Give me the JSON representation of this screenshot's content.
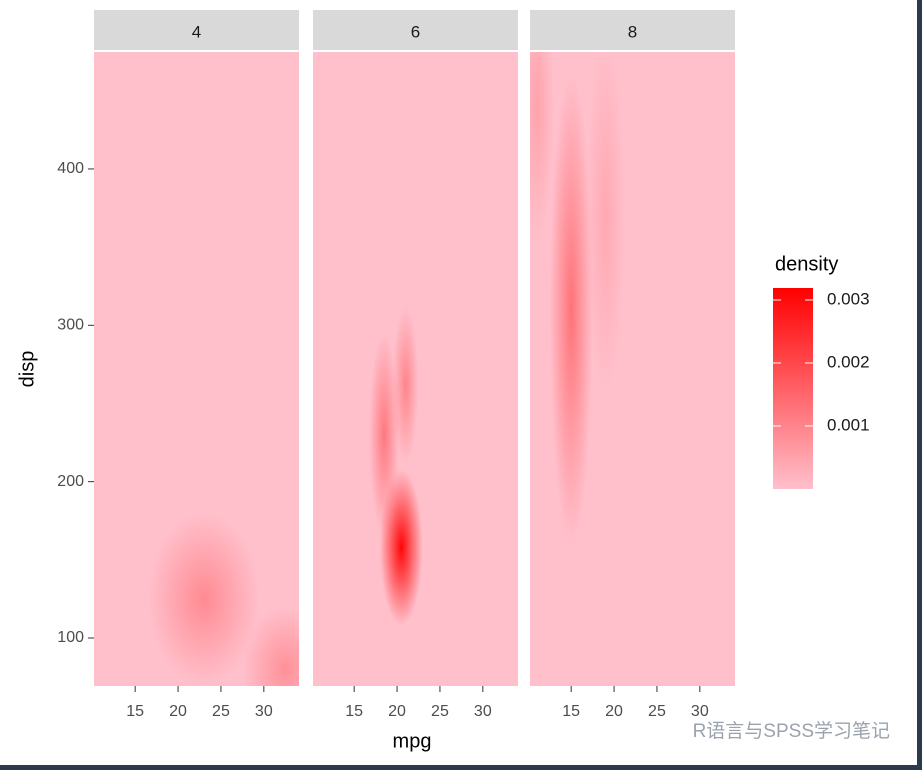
{
  "chart_data": {
    "type": "density2d",
    "x_label": "mpg",
    "y_label": "disp",
    "xlim": [
      10.2,
      34.1
    ],
    "xticks": [
      15,
      20,
      25,
      30
    ],
    "ylim": [
      69.3,
      474.8
    ],
    "yticks": [
      100,
      200,
      300,
      400
    ],
    "legend": {
      "title": "density",
      "lim": [
        0,
        0.00319
      ],
      "ticks": [
        0.001,
        0.002,
        0.003
      ],
      "low": "#ffc0cb",
      "high": "#ff0000",
      "position": "right"
    },
    "facets": [
      {
        "label": "4",
        "peaks": [
          {
            "mpg": 23,
            "disp": 125,
            "density": 0.0009,
            "sx": 2.6,
            "sy": 22
          },
          {
            "mpg": 32.5,
            "disp": 80,
            "density": 0.0008,
            "sx": 2.0,
            "sy": 16
          }
        ]
      },
      {
        "label": "6",
        "peaks": [
          {
            "mpg": 20.5,
            "disp": 158,
            "density": 0.0031,
            "sx": 1.0,
            "sy": 20
          },
          {
            "mpg": 18.5,
            "disp": 230,
            "density": 0.0012,
            "sx": 0.7,
            "sy": 26
          },
          {
            "mpg": 21,
            "disp": 262,
            "density": 0.001,
            "sx": 0.6,
            "sy": 20
          }
        ]
      },
      {
        "label": "8",
        "peaks": [
          {
            "mpg": 15,
            "disp": 310,
            "density": 0.0013,
            "sx": 1.0,
            "sy": 60
          },
          {
            "mpg": 11,
            "disp": 440,
            "density": 0.0005,
            "sx": 0.8,
            "sy": 35
          },
          {
            "mpg": 19,
            "disp": 370,
            "density": 0.0004,
            "sx": 0.9,
            "sy": 45
          }
        ]
      }
    ],
    "watermark": "R语言与SPSS学习笔记"
  }
}
